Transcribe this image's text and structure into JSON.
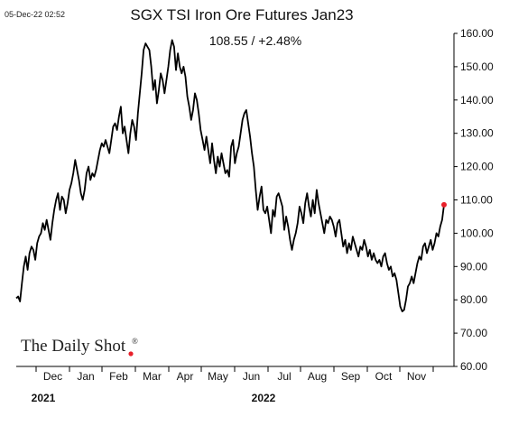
{
  "timestamp": "05-Dec-22 02:52",
  "brand": {
    "name": "The Daily Shot",
    "mark": "®"
  },
  "chart_data": {
    "type": "line",
    "title": "SGX TSI Iron Ore Futures Jan23",
    "readout": "108.55  /  +2.48%",
    "last_value": 108.55,
    "change_pct": "+2.48%",
    "ylim": [
      60,
      160
    ],
    "y_ticks": [
      "60.00",
      "70.00",
      "80.00",
      "90.00",
      "100.00",
      "110.00",
      "120.00",
      "130.00",
      "140.00",
      "150.00",
      "160.00"
    ],
    "y_axis_side": "right",
    "x_ticks": [
      "Dec",
      "Jan",
      "Feb",
      "Mar",
      "Apr",
      "May",
      "Jun",
      "Jul",
      "Aug",
      "Sep",
      "Oct",
      "Nov"
    ],
    "year_labels": [
      "2021",
      "2022"
    ],
    "grid": false,
    "line_color": "#000000",
    "marker_color": "#e8202a",
    "series": [
      {
        "values": [
          80.5,
          81,
          79.5,
          85,
          90,
          93,
          89,
          94,
          96,
          95,
          92,
          97,
          99,
          100,
          103,
          101,
          104,
          101,
          98,
          103,
          107,
          110,
          112,
          107,
          111,
          110,
          106,
          109,
          113,
          115,
          118,
          122,
          119,
          116,
          112,
          110,
          113,
          118,
          120,
          116,
          118,
          117,
          119,
          122,
          125,
          127,
          126,
          128,
          126,
          124,
          128,
          132,
          133,
          131,
          135,
          138,
          130,
          132,
          128,
          124,
          130,
          134,
          132,
          128,
          136,
          142,
          148,
          155,
          157,
          156,
          155,
          150,
          143,
          146,
          139,
          143,
          148,
          146,
          142,
          146,
          150,
          155,
          158,
          156,
          149,
          154,
          150,
          148,
          150,
          147,
          141,
          138,
          134,
          137,
          142,
          140,
          136,
          131,
          128,
          125,
          129,
          125,
          121,
          127,
          122,
          118,
          123,
          120,
          124,
          121,
          118,
          119,
          117,
          126,
          128,
          121,
          124,
          126,
          130,
          134,
          136,
          137,
          133,
          129,
          124,
          120,
          113,
          107,
          111,
          114,
          107,
          106,
          108,
          104,
          100,
          107,
          105,
          111,
          112,
          110,
          108,
          101,
          105,
          102,
          98,
          95,
          98,
          100,
          103,
          108,
          106,
          103,
          109,
          112,
          108,
          105,
          110,
          106,
          113,
          109,
          106,
          103,
          100,
          104,
          103,
          105,
          104,
          102,
          99,
          103,
          104,
          100,
          96,
          98,
          94,
          97,
          95,
          99,
          97,
          95,
          93,
          96,
          95,
          98,
          96,
          93,
          95,
          92,
          94,
          92,
          91,
          92,
          90,
          93,
          94,
          91,
          89,
          90,
          87,
          88,
          86,
          82,
          78,
          76.5,
          77,
          80,
          84,
          85,
          87,
          85,
          88,
          91,
          93,
          92,
          96,
          97,
          94,
          96,
          98,
          95,
          97,
          100,
          99,
          102,
          104,
          108.55
        ]
      }
    ]
  }
}
